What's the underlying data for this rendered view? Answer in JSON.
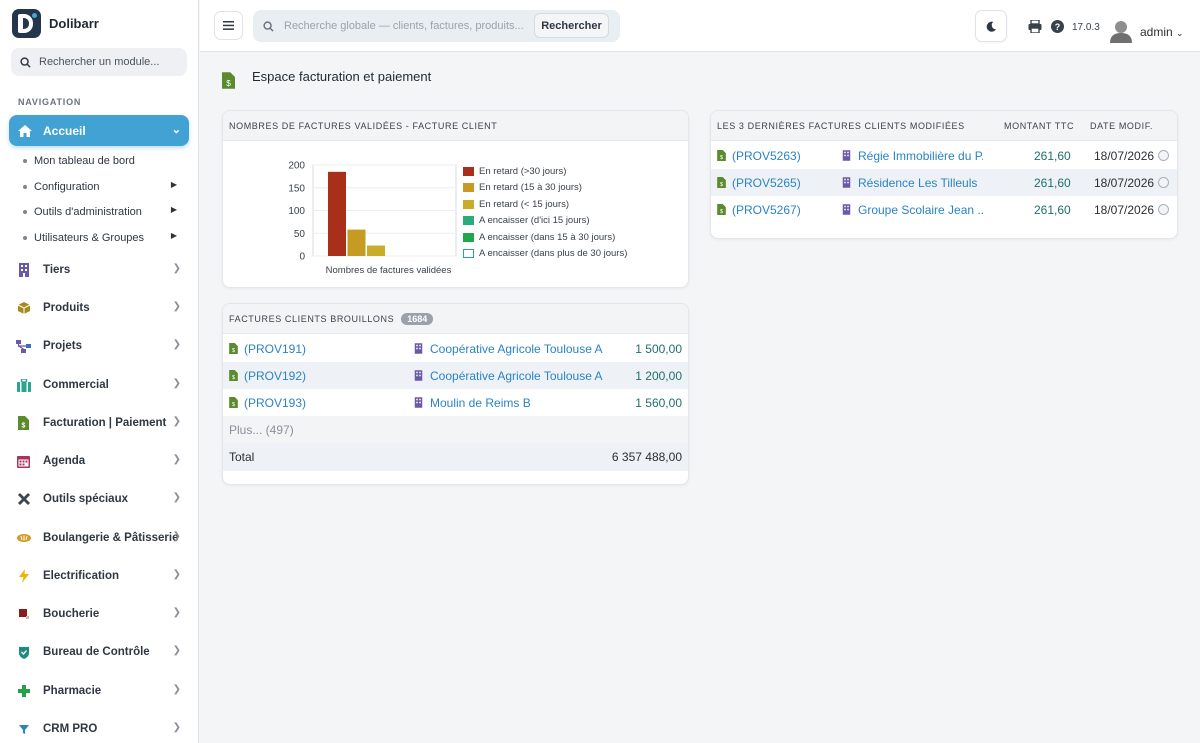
{
  "app": {
    "name": "Dolibarr",
    "version": "17.0.3",
    "user": "admin"
  },
  "sidebar": {
    "search_placeholder": "Rechercher un module...",
    "nav_label": "NAVIGATION",
    "active_item": "Accueil",
    "subitems": [
      "Mon tableau de bord",
      "Configuration",
      "Outils d'administration",
      "Utilisateurs & Groupes"
    ],
    "items": [
      "Tiers",
      "Produits",
      "Projets",
      "Commercial",
      "Facturation | Paiement",
      "Agenda",
      "Outils spéciaux",
      "Boulangerie & Pâtisserie",
      "Electrification",
      "Boucherie",
      "Bureau de Contrôle",
      "Pharmacie",
      "CRM PRO"
    ]
  },
  "topbar": {
    "search_placeholder": "Recherche globale — clients, factures, produits...",
    "search_button": "Rechercher"
  },
  "page": {
    "title": "Espace facturation et paiement"
  },
  "chart_card": {
    "title": "NOMBRES DE FACTURES VALIDÉES - FACTURE CLIENT",
    "chart_data": {
      "type": "bar",
      "categories": [
        "Nombres de factures validées"
      ],
      "xlabel": "Nombres de factures validées",
      "ylim": [
        0,
        200
      ],
      "yticks": [
        0,
        50,
        100,
        150,
        200
      ],
      "series": [
        {
          "name": "En retard (>30 jours)",
          "values": [
            185
          ],
          "color": "#a8301a"
        },
        {
          "name": "En retard (15 à 30 jours)",
          "values": [
            58
          ],
          "color": "#c79a22"
        },
        {
          "name": "En retard (< 15 jours)",
          "values": [
            23
          ],
          "color": "#c9ad2a"
        },
        {
          "name": "A encaisser (d'ici 15 jours)",
          "values": [
            0
          ],
          "color": "#2bab7c"
        },
        {
          "name": "A encaisser (dans 15 à 30 jours)",
          "values": [
            0
          ],
          "color": "#1fa84a"
        },
        {
          "name": "A encaisser (dans plus de 30 jours)",
          "values": [
            0
          ],
          "color": "#ffffff"
        }
      ],
      "legend": "right"
    }
  },
  "drafts_card": {
    "title": "FACTURES CLIENTS BROUILLONS",
    "badge": "1684",
    "rows": [
      {
        "ref": "(PROV191)",
        "client": "Coopérative Agricole Toulouse A",
        "amount": "1 500,00"
      },
      {
        "ref": "(PROV192)",
        "client": "Coopérative Agricole Toulouse A",
        "amount": "1 200,00"
      },
      {
        "ref": "(PROV193)",
        "client": "Moulin de Reims B",
        "amount": "1 560,00"
      }
    ],
    "more": "Plus... (497)",
    "total_label": "Total",
    "total_value": "6 357 488,00"
  },
  "last_card": {
    "title": "LES 3 DERNIÈRES FACTURES CLIENTS MODIFIÉES",
    "col_amount": "MONTANT TTC",
    "col_date": "DATE MODIF.",
    "rows": [
      {
        "ref": "(PROV5263)",
        "client": "Régie Immobilière du P...",
        "amount": "261,60",
        "date": "18/07/2026"
      },
      {
        "ref": "(PROV5265)",
        "client": "Résidence Les Tilleuls",
        "amount": "261,60",
        "date": "18/07/2026"
      },
      {
        "ref": "(PROV5267)",
        "client": "Groupe Scolaire Jean ...",
        "amount": "261,60",
        "date": "18/07/2026"
      }
    ]
  }
}
